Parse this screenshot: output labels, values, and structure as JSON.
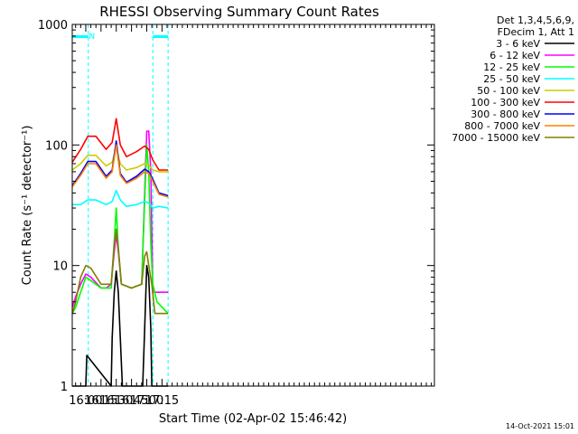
{
  "chart_data": {
    "type": "line",
    "title": "RHESSI Observing Summary Count Rates",
    "xlabel": "Start Time (02-Apr-02 15:46:42)",
    "ylabel": "Count Rate (s⁻¹ detector⁻¹)",
    "y_scale": "log",
    "ylim": [
      1,
      1000
    ],
    "y_ticks": [
      {
        "value": 1,
        "label": "1"
      },
      {
        "value": 10,
        "label": "10"
      },
      {
        "value": 100,
        "label": "100"
      },
      {
        "value": 1000,
        "label": "1000"
      }
    ],
    "x_unit": "minutes",
    "xlim": [
      946.7,
      1303
    ],
    "x_ticks": [
      {
        "value": 960,
        "label": "16:00"
      },
      {
        "value": 975,
        "label": "16:15"
      },
      {
        "value": 990,
        "label": "16:30"
      },
      {
        "value": 1005,
        "label": "16:45"
      },
      {
        "value": 1020,
        "label": "17:00"
      },
      {
        "value": 1035,
        "label": "17:15"
      }
    ],
    "legend_position": "top-right",
    "legend_header": [
      "Det 1,3,4,5,6,9,",
      "FDecim 1, Att 1"
    ],
    "footer_date": "14-Oct-2021 15:01",
    "annotations": [
      {
        "text": "N",
        "x": 963
      }
    ],
    "night_intervals": [
      [
        946.7,
        962.5
      ],
      [
        1026.0,
        1041.0
      ]
    ],
    "series": [
      {
        "name": "3 - 6 keV",
        "color": "#000000",
        "x": [
          946.7,
          960,
          961,
          985,
          986,
          988,
          990,
          992,
          994,
          996,
          1016,
          1018,
          1020,
          1022,
          1024,
          1025,
          1041
        ],
        "y": [
          1,
          1,
          1.8,
          1,
          2.5,
          6,
          9,
          6,
          2.5,
          1,
          1,
          3,
          10,
          8,
          3,
          1,
          1
        ]
      },
      {
        "name": "6 - 12 keV",
        "color": "#ff00ff",
        "x": [
          946.7,
          950,
          955,
          960,
          965,
          975,
          980,
          985,
          988,
          990,
          992,
          995,
          1005,
          1015,
          1018,
          1020,
          1022,
          1024,
          1026,
          1030,
          1041
        ],
        "y": [
          4.5,
          5.5,
          7,
          8.5,
          8,
          6.5,
          6.5,
          7,
          13,
          18,
          13,
          7,
          6.5,
          7,
          40,
          130,
          130,
          60,
          6,
          6,
          6
        ]
      },
      {
        "name": "12 - 25 keV",
        "color": "#00ff00",
        "x": [
          946.7,
          950,
          955,
          960,
          965,
          975,
          985,
          988,
          990,
          992,
          995,
          1005,
          1015,
          1018,
          1020,
          1022,
          1024,
          1026,
          1030,
          1041
        ],
        "y": [
          4,
          4.5,
          6,
          8,
          7.5,
          6.5,
          6.5,
          16,
          30,
          14,
          7,
          6.5,
          7,
          35,
          100,
          60,
          15,
          7,
          5,
          4
        ]
      },
      {
        "name": "25 - 50 keV",
        "color": "#00ffff",
        "x": [
          946.7,
          955,
          962,
          970,
          980,
          986,
          990,
          994,
          1000,
          1010,
          1018,
          1022,
          1026,
          1032,
          1041
        ],
        "y": [
          32,
          32,
          35,
          35,
          32,
          34,
          42,
          35,
          31,
          32,
          34,
          33,
          30,
          31,
          30
        ]
      },
      {
        "name": "50 - 100 keV",
        "color": "#cccc00",
        "x": [
          946.7,
          955,
          962,
          970,
          980,
          986,
          990,
          994,
          1000,
          1010,
          1018,
          1022,
          1026,
          1032,
          1041
        ],
        "y": [
          62,
          70,
          82,
          82,
          67,
          72,
          95,
          70,
          62,
          65,
          70,
          68,
          62,
          60,
          60
        ]
      },
      {
        "name": "100 - 300 keV",
        "color": "#ff0000",
        "x": [
          946.7,
          955,
          962,
          970,
          980,
          986,
          990,
          994,
          1000,
          1010,
          1018,
          1022,
          1026,
          1032,
          1041
        ],
        "y": [
          72,
          92,
          118,
          118,
          92,
          105,
          165,
          100,
          80,
          88,
          98,
          92,
          75,
          62,
          62
        ]
      },
      {
        "name": "300 - 800 keV",
        "color": "#0000ff",
        "x": [
          946.7,
          955,
          962,
          970,
          980,
          986,
          990,
          994,
          1000,
          1010,
          1018,
          1022,
          1026,
          1032,
          1041
        ],
        "y": [
          46,
          58,
          73,
          73,
          55,
          62,
          108,
          58,
          49,
          55,
          63,
          60,
          52,
          40,
          38
        ]
      },
      {
        "name": "800 - 7000 keV",
        "color": "#ff8000",
        "x": [
          946.7,
          955,
          962,
          970,
          980,
          986,
          990,
          994,
          1000,
          1010,
          1018,
          1022,
          1026,
          1032,
          1041
        ],
        "y": [
          45,
          56,
          70,
          70,
          53,
          60,
          100,
          56,
          48,
          53,
          60,
          58,
          50,
          39,
          37
        ]
      },
      {
        "name": "7000 - 15000 keV",
        "color": "#808000",
        "x": [
          946.7,
          950,
          955,
          960,
          965,
          975,
          985,
          988,
          990,
          992,
          995,
          1005,
          1015,
          1018,
          1020,
          1022,
          1025,
          1028,
          1041
        ],
        "y": [
          4,
          5,
          8,
          10,
          9.5,
          7,
          7,
          15,
          20,
          14,
          7,
          6.5,
          7,
          12,
          13,
          10,
          7,
          4,
          4
        ]
      }
    ]
  }
}
